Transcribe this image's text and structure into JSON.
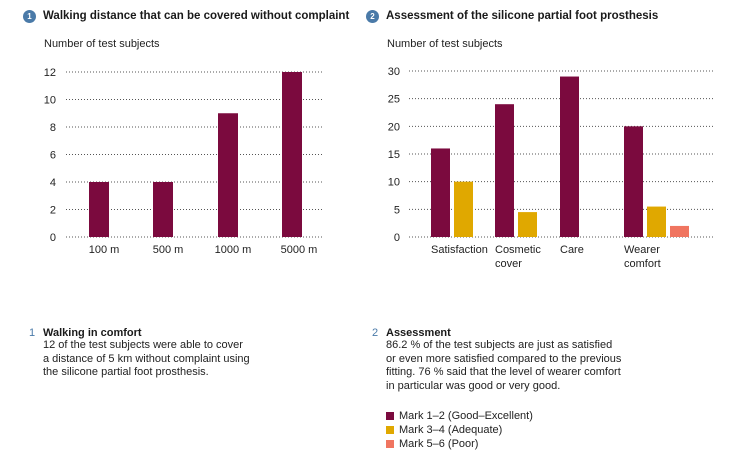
{
  "colors": {
    "mark12": "#7b0a3e",
    "mark34": "#e0a800",
    "mark56": "#f07560",
    "badge": "#4a7aa8",
    "grid": "#555555"
  },
  "panel1": {
    "badge": "1",
    "title": "Walking distance that can be covered without complaint",
    "ylabel": "Number of test subjects"
  },
  "panel2": {
    "badge": "2",
    "title": "Assessment of the silicone partial foot prosthesis",
    "ylabel": "Number of test subjects"
  },
  "chart_data": [
    {
      "type": "bar",
      "title": "Walking distance that can be covered without complaint",
      "ylabel": "Number of test subjects",
      "xlabel": "",
      "categories": [
        "100 m",
        "500 m",
        "1000 m",
        "5000 m"
      ],
      "series": [
        {
          "values": [
            4,
            4,
            9,
            12
          ]
        }
      ],
      "ylim": [
        0,
        12
      ],
      "yticks": [
        0,
        2,
        4,
        6,
        8,
        10,
        12
      ],
      "grid": "dotted horizontal"
    },
    {
      "type": "bar",
      "title": "Assessment of the silicone partial foot prosthesis",
      "ylabel": "Number of test subjects",
      "xlabel": "",
      "categories": [
        "Satisfaction",
        "Cosmetic cover",
        "Care",
        "Wearer comfort"
      ],
      "category_lines": [
        [
          "Satisfaction"
        ],
        [
          "Cosmetic",
          "cover"
        ],
        [
          "Care"
        ],
        [
          "Wearer",
          "comfort"
        ]
      ],
      "series": [
        {
          "name": "Mark 1–2 (Good–Excellent)",
          "values": [
            16,
            24,
            29,
            20
          ]
        },
        {
          "name": "Mark 3–4 (Adequate)",
          "values": [
            10,
            4.5,
            0,
            5.5
          ]
        },
        {
          "name": "Mark 5–6 (Poor)",
          "values": [
            0,
            0,
            0,
            2
          ]
        }
      ],
      "ylim": [
        0,
        30
      ],
      "yticks": [
        0,
        5,
        10,
        15,
        20,
        25,
        30
      ],
      "grid": "dotted horizontal",
      "legend": "bottom-left"
    }
  ],
  "captions": [
    {
      "number": "1",
      "title": "Walking in comfort",
      "text": "12 of the test subjects were able to cover\na distance of 5 km without complaint using\nthe silicone partial foot prosthesis."
    },
    {
      "number": "2",
      "title": "Assessment",
      "text": "86.2 % of the test subjects are just as satisfied\nor even more satisfied compared to the previous\nfitting. 76 % said that the level of wearer comfort\nin particular was good or very good."
    }
  ],
  "legend": [
    {
      "label": "Mark 1–2 (Good–Excellent)",
      "color": "#7b0a3e"
    },
    {
      "label": "Mark 3–4 (Adequate)",
      "color": "#e0a800"
    },
    {
      "label": "Mark 5–6 (Poor)",
      "color": "#f07560"
    }
  ]
}
